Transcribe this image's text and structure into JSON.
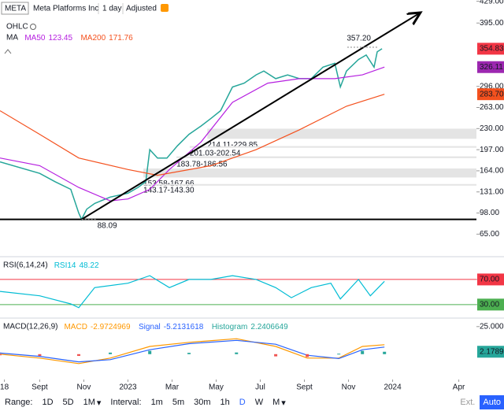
{
  "chart_data": [
    {
      "type": "line",
      "symbol": "META",
      "name": "Meta Platforms Inc",
      "interval": "1 day",
      "adjustment": "Adjusted",
      "style": "OHLC",
      "indicator": "MA",
      "xlim": [
        6.2,
        27.8
      ],
      "ylim": [
        31,
        431
      ],
      "yticks": [
        {
          "value": 65,
          "label": "65.00"
        },
        {
          "value": 98,
          "label": "98.00"
        },
        {
          "value": 131,
          "label": "131.00"
        },
        {
          "value": 164,
          "label": "164.00"
        },
        {
          "value": 197,
          "label": "197.00"
        },
        {
          "value": 230,
          "label": "230.00"
        },
        {
          "value": 263,
          "label": "263.00"
        },
        {
          "value": 296,
          "label": "296.00"
        },
        {
          "value": 395,
          "label": "395.00"
        },
        {
          "value": 429,
          "label": "429.00"
        }
      ],
      "zones": [
        {
          "x": 15.6,
          "low": 214.11,
          "high": 229.85,
          "label": "214.11-229.85"
        },
        {
          "x": 14.8,
          "low": 201.03,
          "high": 202.54,
          "label": "201.03-202.54"
        },
        {
          "x": 14.2,
          "low": 183.78,
          "high": 186.56,
          "label": "183.78-186.56"
        },
        {
          "x": 12.7,
          "low": 153.58,
          "high": 167.66,
          "label": "153.58-167.66"
        },
        {
          "x": 12.7,
          "low": 143.17,
          "high": 143.3,
          "label": "143.17-143.30"
        }
      ],
      "trendlines": [
        {
          "x": [
            6.2,
            27.8
          ],
          "values": [
            88.09,
            88.09
          ],
          "arrow": false
        },
        {
          "x": [
            9.9,
            25.2
          ],
          "values": [
            88.09,
            410
          ],
          "arrow": true
        }
      ],
      "annotations": [
        {
          "x": 23.3,
          "value": 357.2,
          "label": "357.20"
        },
        {
          "x": 9.9,
          "value": 88.09
        }
      ],
      "series": [
        {
          "color": "#26a69a",
          "x": [
            6.2,
            8.0,
            8.7,
            9.41,
            9.77,
            9.9,
            10.13,
            10.49,
            11.2,
            12.0,
            12.45,
            12.81,
            12.99,
            13.34,
            13.77,
            14.24,
            14.77,
            15.31,
            15.77,
            16.2,
            16.74,
            17.27,
            17.81,
            18.16,
            18.7,
            19.24,
            19.77,
            20.31,
            20.84,
            21.38,
            21.63,
            21.91,
            22.45,
            22.8,
            23.16,
            23.3,
            23.52
          ],
          "values": [
            178,
            160,
            147,
            135,
            98,
            88.09,
            104,
            113,
            123,
            129,
            138,
            147,
            197,
            184,
            184,
            203,
            221,
            234,
            246,
            258,
            295,
            301,
            314,
            320,
            308,
            314,
            308,
            308,
            326,
            332,
            295,
            320,
            338,
            345,
            326,
            350,
            354.83
          ]
        },
        {
          "name": "MA50",
          "legend_value": 123.45,
          "color": "#b620e0",
          "x": [
            6.2,
            8.0,
            9.77,
            11.2,
            12.0,
            12.99,
            13.88,
            15.31,
            16.74,
            18.34,
            19.77,
            21.38,
            22.63,
            23.63
          ],
          "values": [
            184,
            172,
            138,
            117,
            120,
            135,
            166,
            209,
            271,
            301,
            308,
            308,
            314,
            326.11
          ]
        },
        {
          "name": "MA200",
          "legend_value": 171.76,
          "color": "#f4511e",
          "x": [
            6.2,
            8.0,
            9.77,
            12.0,
            13.34,
            15.77,
            17.81,
            19.77,
            21.91,
            23.63
          ],
          "values": [
            258,
            221,
            184,
            166,
            157,
            172,
            197,
            228,
            265,
            283.7
          ]
        }
      ],
      "price_labels": [
        {
          "value": 354.83,
          "color": "#f23645"
        },
        {
          "value": 326.11,
          "color": "#9c27b0"
        },
        {
          "value": 283.7,
          "label": "283.70",
          "color": "#f4511e"
        }
      ]
    },
    {
      "type": "line",
      "title": "RSI(6,14,24)",
      "xlim": [
        6.2,
        27.8
      ],
      "ylim": [
        11,
        105
      ],
      "yticks": [
        {
          "value": 70,
          "label": "70.00",
          "color": "#f23645"
        },
        {
          "value": 30,
          "label": "30.00",
          "color": "#4caf50"
        }
      ],
      "series": [
        {
          "name": "RSI14",
          "legend_value": 48.22,
          "color": "#00bcd4",
          "x": [
            6.2,
            8.0,
            9.41,
            9.77,
            10.49,
            12.0,
            12.99,
            13.88,
            14.77,
            15.77,
            16.74,
            17.81,
            18.7,
            19.41,
            20.31,
            21.2,
            21.63,
            22.45,
            22.99,
            23.63
          ],
          "values": [
            51,
            44,
            31,
            25,
            57,
            64,
            76,
            57,
            70,
            70,
            76,
            70,
            57,
            41,
            57,
            64,
            39,
            70,
            44,
            67
          ]
        }
      ]
    },
    {
      "type": "line",
      "title": "MACD(12,26,9)",
      "xlim": [
        6.2,
        27.8
      ],
      "ylim": [
        -23,
        32
      ],
      "yticks": [
        {
          "value": 25,
          "label": "25.0000"
        }
      ],
      "xticks": [
        {
          "value": 6.4,
          "label": "18"
        },
        {
          "value": 8,
          "label": "Sept"
        },
        {
          "value": 10,
          "label": "Nov"
        },
        {
          "value": 12,
          "label": "2023"
        },
        {
          "value": 14,
          "label": "Mar"
        },
        {
          "value": 16,
          "label": "May"
        },
        {
          "value": 18,
          "label": "Jul"
        },
        {
          "value": 20,
          "label": "Sept"
        },
        {
          "value": 22,
          "label": "Nov"
        },
        {
          "value": 24,
          "label": "2024"
        },
        {
          "value": 27,
          "label": "Apr"
        }
      ],
      "series": [
        {
          "name": "MACD",
          "legend_value": -2.9724969,
          "color": "#ff9800",
          "x": [
            6.2,
            8.0,
            9.77,
            11.2,
            12.99,
            14.77,
            16.92,
            18.7,
            20.13,
            21.56,
            22.63,
            23.63
          ],
          "values": [
            0,
            -3.6,
            -8.6,
            -3.6,
            7,
            10.7,
            14,
            7,
            -3.6,
            -3.6,
            7,
            8.6
          ]
        },
        {
          "name": "Signal",
          "legend_value": -5.2131618,
          "color": "#2962ff",
          "x": [
            6.2,
            8.0,
            9.77,
            11.2,
            12.99,
            14.77,
            16.92,
            18.7,
            20.13,
            21.56,
            22.63,
            23.63
          ],
          "values": [
            1,
            -2,
            -7,
            -5,
            4,
            9.5,
            12.5,
            9,
            -1,
            -4,
            4,
            6.4
          ]
        },
        {
          "name": "Histogram",
          "type": "bar",
          "legend_value": 2.2406649,
          "color": "#26a69a",
          "neg_color": "#ef5350",
          "x": [
            6.2,
            8.0,
            9.77,
            11.2,
            12.99,
            14.77,
            16.92,
            18.7,
            20.13,
            21.56,
            22.63,
            23.63
          ],
          "values": [
            -1,
            -1.6,
            -1.6,
            1.4,
            3,
            1.2,
            1.5,
            -2,
            -2.6,
            0.4,
            3,
            2.1789
          ]
        }
      ],
      "price_labels": [
        {
          "value": 2.1789,
          "color": "#26a69a"
        }
      ]
    }
  ],
  "toolbar": {
    "range_label": "Range:",
    "ranges": [
      "1D",
      "5D",
      "1M"
    ],
    "interval_label": "Interval:",
    "intervals": [
      "1m",
      "5m",
      "30m",
      "1h",
      "D",
      "W",
      "M"
    ],
    "active_interval": "D",
    "ext": "Ext.",
    "auto": "Auto"
  }
}
